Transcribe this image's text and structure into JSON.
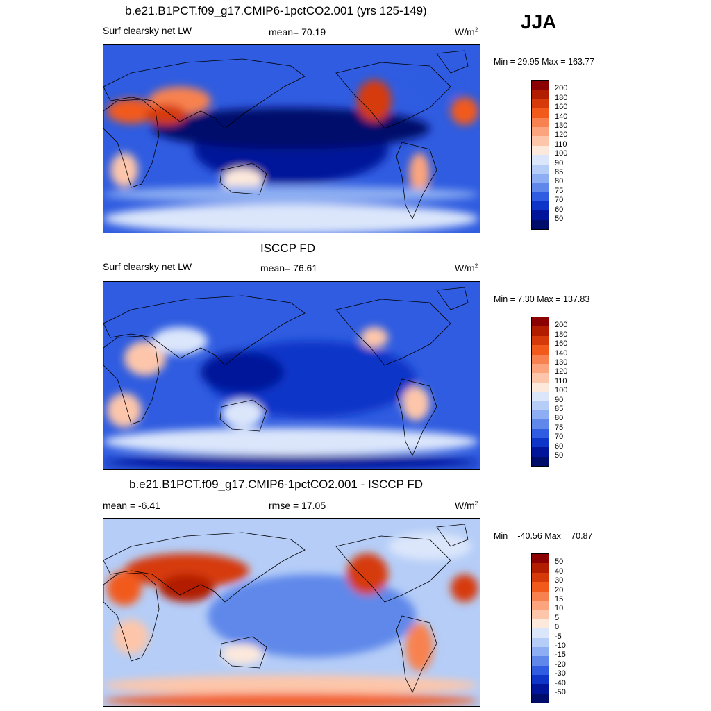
{
  "season": "JJA",
  "panels": [
    {
      "title": "b.e21.B1PCT.f09_g17.CMIP6-1pctCO2.001 (yrs 125-149)",
      "left_label": "Surf clearsky net LW",
      "center_label": "mean=  70.19",
      "units": "W/m",
      "units_sup": "2",
      "minmax": "Min =  29.95 Max = 163.77",
      "colorbar_labels": [
        "200",
        "180",
        "160",
        "140",
        "130",
        "120",
        "110",
        "100",
        "90",
        "85",
        "80",
        "75",
        "70",
        "60",
        "50"
      ]
    },
    {
      "title": "ISCCP FD",
      "left_label": "Surf clearsky net LW",
      "center_label": "mean=  76.61",
      "units": "W/m",
      "units_sup": "2",
      "minmax": "Min =   7.30 Max = 137.83",
      "colorbar_labels": [
        "200",
        "180",
        "160",
        "140",
        "130",
        "120",
        "110",
        "100",
        "90",
        "85",
        "80",
        "75",
        "70",
        "60",
        "50"
      ]
    },
    {
      "title": "b.e21.B1PCT.f09_g17.CMIP6-1pctCO2.001 - ISCCP FD",
      "left_label": "mean =  -6.41",
      "center_label": "rmse =  17.05",
      "units": "W/m",
      "units_sup": "2",
      "minmax": "Min = -40.56 Max =  70.87",
      "colorbar_labels": [
        "50",
        "40",
        "30",
        "20",
        "15",
        "10",
        "5",
        "0",
        "-5",
        "-10",
        "-15",
        "-20",
        "-30",
        "-40",
        "-50"
      ]
    }
  ],
  "colors": {
    "abs_scale": [
      "#8b0000",
      "#b21d00",
      "#d63a0a",
      "#f25a1c",
      "#f8824f",
      "#fba47e",
      "#fdc6aa",
      "#fde9dc",
      "#dbe6fb",
      "#b5cdf7",
      "#8daef2",
      "#5f88ea",
      "#2f5ce0",
      "#0e34c8",
      "#00159a",
      "#000c6a"
    ],
    "diff_scale": [
      "#8b0000",
      "#b21d00",
      "#d63a0a",
      "#f25a1c",
      "#f8824f",
      "#fba47e",
      "#fdc6aa",
      "#fde9dc",
      "#dbe6fb",
      "#b5cdf7",
      "#8daef2",
      "#5f88ea",
      "#2f5ce0",
      "#0e34c8",
      "#00159a",
      "#000c6a"
    ]
  }
}
